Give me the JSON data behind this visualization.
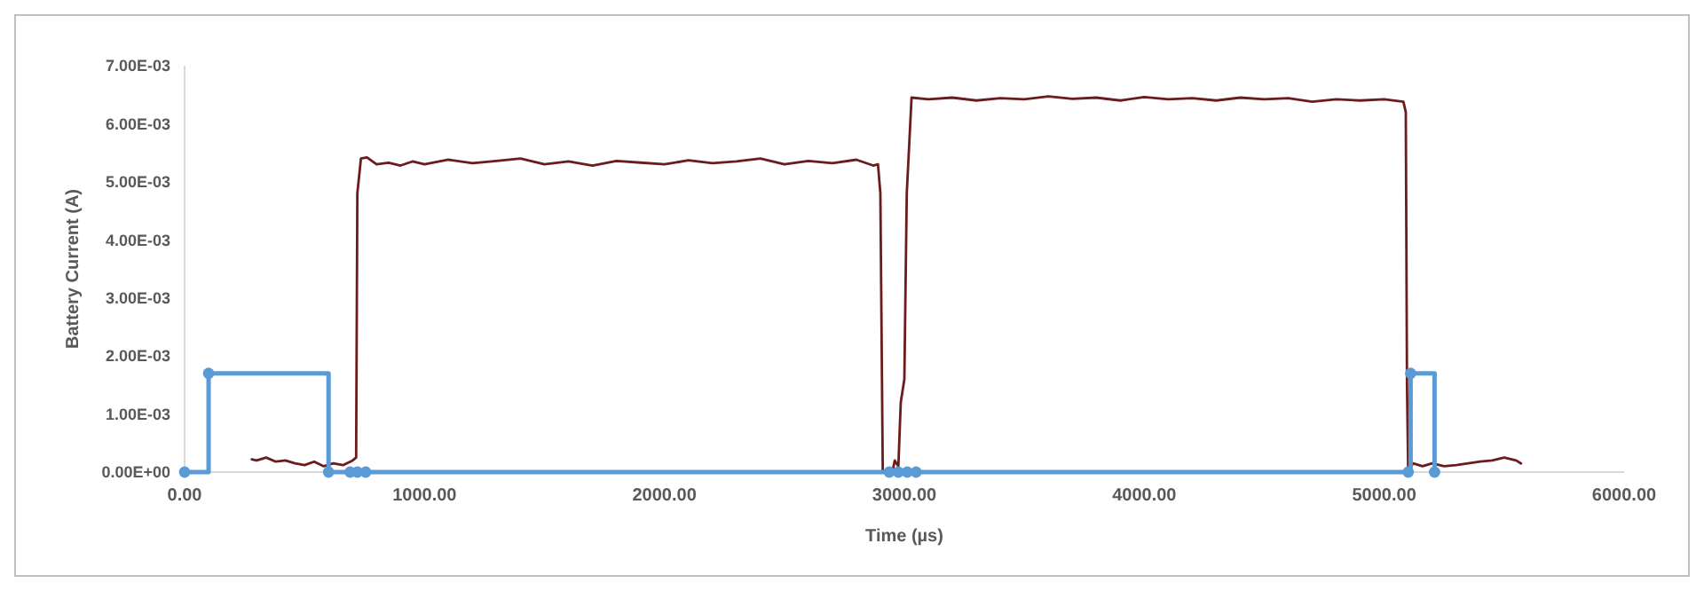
{
  "chart_data": {
    "type": "line",
    "xlabel": "Time (µs)",
    "ylabel": "Battery Current (A)",
    "xlim": [
      0,
      6000
    ],
    "xticks": [
      {
        "value": 0,
        "label": "0.00"
      },
      {
        "value": 1000,
        "label": "1000.00"
      },
      {
        "value": 2000,
        "label": "2000.00"
      },
      {
        "value": 3000,
        "label": "3000.00"
      },
      {
        "value": 4000,
        "label": "4000.00"
      },
      {
        "value": 5000,
        "label": "5000.00"
      },
      {
        "value": 6000,
        "label": "6000.00"
      }
    ],
    "ylim": [
      0,
      0.007
    ],
    "yticks": [
      {
        "value": 0,
        "label": "0.00E+00"
      },
      {
        "value": 0.001,
        "label": "1.00E-03"
      },
      {
        "value": 0.002,
        "label": "2.00E-03"
      },
      {
        "value": 0.003,
        "label": "3.00E-03"
      },
      {
        "value": 0.004,
        "label": "4.00E-03"
      },
      {
        "value": 0.005,
        "label": "5.00E-03"
      },
      {
        "value": 0.006,
        "label": "6.00E-03"
      },
      {
        "value": 0.007,
        "label": "7.00E-03"
      }
    ],
    "grid": false,
    "series": [
      {
        "color": "#6b1c1c",
        "marker": "none",
        "x": [
          280,
          300,
          340,
          380,
          420,
          460,
          500,
          540,
          580,
          620,
          660,
          700,
          715,
          720,
          735,
          760,
          800,
          850,
          900,
          950,
          1000,
          1100,
          1200,
          1300,
          1400,
          1500,
          1600,
          1700,
          1800,
          1900,
          2000,
          2100,
          2200,
          2300,
          2400,
          2500,
          2600,
          2700,
          2800,
          2870,
          2890,
          2900,
          2910,
          2950,
          2960,
          2975,
          2985,
          3000,
          3010,
          3030,
          3100,
          3200,
          3300,
          3400,
          3500,
          3600,
          3700,
          3800,
          3900,
          4000,
          4100,
          4200,
          4300,
          4400,
          4500,
          4600,
          4700,
          4800,
          4900,
          5000,
          5080,
          5090,
          5095,
          5100,
          5120,
          5160,
          5200,
          5250,
          5300,
          5350,
          5400,
          5450,
          5500,
          5550,
          5570
        ],
        "values": [
          0.00022,
          0.0002,
          0.00025,
          0.00018,
          0.0002,
          0.00015,
          0.00012,
          0.00018,
          0.0001,
          0.00015,
          0.00012,
          0.0002,
          0.00025,
          0.0048,
          0.0054,
          0.00542,
          0.0053,
          0.00533,
          0.00528,
          0.00535,
          0.0053,
          0.00538,
          0.00532,
          0.00536,
          0.0054,
          0.0053,
          0.00535,
          0.00528,
          0.00536,
          0.00533,
          0.0053,
          0.00537,
          0.00532,
          0.00535,
          0.0054,
          0.0053,
          0.00536,
          0.00532,
          0.00538,
          0.00528,
          0.0053,
          0.0048,
          0,
          0,
          0.0002,
          0.0001,
          0.0012,
          0.0016,
          0.0048,
          0.00645,
          0.00642,
          0.00645,
          0.0064,
          0.00644,
          0.00642,
          0.00647,
          0.00643,
          0.00645,
          0.0064,
          0.00646,
          0.00642,
          0.00644,
          0.0064,
          0.00645,
          0.00642,
          0.00644,
          0.00638,
          0.00642,
          0.0064,
          0.00642,
          0.00638,
          0.0062,
          0.0015,
          0,
          0.00015,
          0.0001,
          0.00015,
          0.0001,
          0.00012,
          0.00015,
          0.00018,
          0.0002,
          0.00025,
          0.0002,
          0.00015
        ]
      },
      {
        "type": "step",
        "color": "#5b9bd5",
        "marker": "circle",
        "x": [
          0,
          100,
          600,
          690,
          720,
          755,
          2937,
          2975,
          3012,
          3049,
          5100,
          5110,
          5210
        ],
        "values": [
          0,
          0.0017,
          0,
          0,
          0,
          0,
          0,
          0,
          0,
          0,
          0,
          0.0017,
          0
        ]
      }
    ]
  }
}
